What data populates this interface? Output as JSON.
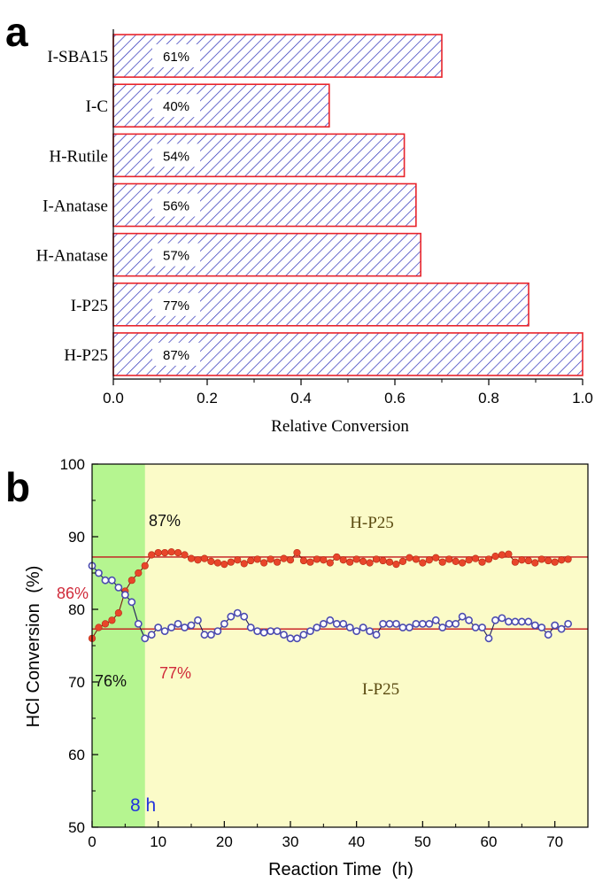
{
  "colors": {
    "bar_edge": "#e8242b",
    "hatch": "#2b2fb8",
    "orange": "#e8452a",
    "blue": "#4b4bb0",
    "ref_line": "#c4161c",
    "green_band": "#b5f590",
    "yellow_bg": "#fbfbc8"
  },
  "chart_data": [
    {
      "panel_label": "a",
      "type": "bar",
      "orientation": "horizontal",
      "categories": [
        "I-SBA15",
        "I-C",
        "H-Rutile",
        "I-Anatase",
        "H-Anatase",
        "I-P25",
        "H-P25"
      ],
      "values": [
        0.7,
        0.46,
        0.62,
        0.645,
        0.655,
        0.885,
        1.0
      ],
      "bar_labels": [
        "61%",
        "40%",
        "54%",
        "56%",
        "57%",
        "77%",
        "87%"
      ],
      "xlabel": "Relative Conversion",
      "xlim": [
        0,
        1.0
      ],
      "xticks": [
        "0.0",
        "0.2",
        "0.4",
        "0.6",
        "0.8",
        "1.0"
      ]
    },
    {
      "panel_label": "b",
      "type": "line",
      "xlabel": "Reaction Time",
      "xlabel_unit": "(h)",
      "ylabel": "HCl Conversion",
      "ylabel_unit": "(%)",
      "xlim": [
        0,
        75
      ],
      "ylim": [
        50,
        100
      ],
      "xticks": [
        "0",
        "10",
        "20",
        "30",
        "40",
        "50",
        "60",
        "70"
      ],
      "yticks": [
        "50",
        "60",
        "70",
        "80",
        "90",
        "100"
      ],
      "shaded_region_end": 8,
      "shaded_region_label": "8 h",
      "reference_lines": [
        87.2,
        77.3
      ],
      "series": [
        {
          "name": "H-P25",
          "color_key": "orange",
          "x": [
            0,
            1,
            2,
            3,
            4,
            5,
            6,
            7,
            8,
            9,
            10,
            11,
            12,
            13,
            14,
            15,
            16,
            17,
            18,
            19,
            20,
            21,
            22,
            23,
            24,
            25,
            26,
            27,
            28,
            29,
            30,
            31,
            32,
            33,
            34,
            35,
            36,
            37,
            38,
            39,
            40,
            41,
            42,
            43,
            44,
            45,
            46,
            47,
            48,
            49,
            50,
            51,
            52,
            53,
            54,
            55,
            56,
            57,
            58,
            59,
            60,
            61,
            62,
            63,
            64,
            65,
            66,
            67,
            68,
            69,
            70,
            71,
            72
          ],
          "y": [
            76,
            77.5,
            78,
            78.5,
            79.5,
            82.5,
            84,
            85,
            86,
            87.5,
            87.8,
            87.8,
            87.9,
            87.8,
            87.5,
            87,
            86.8,
            87.0,
            86.6,
            86.4,
            86.2,
            86.5,
            86.8,
            86.3,
            86.7,
            86.9,
            86.4,
            86.9,
            86.5,
            87.0,
            86.8,
            87.8,
            86.7,
            86.5,
            86.9,
            86.8,
            86.4,
            87.2,
            86.8,
            86.5,
            86.9,
            86.6,
            86.4,
            86.9,
            86.7,
            86.5,
            86.2,
            86.6,
            87.1,
            86.9,
            86.4,
            86.8,
            87.1,
            86.5,
            86.9,
            86.6,
            86.4,
            86.8,
            87.0,
            86.5,
            86.9,
            87.3,
            87.5,
            87.6,
            86.5,
            86.8,
            86.7,
            86.4,
            86.9,
            86.7,
            86.5,
            86.8,
            86.9
          ]
        },
        {
          "name": "I-P25",
          "color_key": "blue",
          "x": [
            0,
            1,
            2,
            3,
            4,
            5,
            6,
            7,
            8,
            9,
            10,
            11,
            12,
            13,
            14,
            15,
            16,
            17,
            18,
            19,
            20,
            21,
            22,
            23,
            24,
            25,
            26,
            27,
            28,
            29,
            30,
            31,
            32,
            33,
            34,
            35,
            36,
            37,
            38,
            39,
            40,
            41,
            42,
            43,
            44,
            45,
            46,
            47,
            48,
            49,
            50,
            51,
            52,
            53,
            54,
            55,
            56,
            57,
            58,
            59,
            60,
            61,
            62,
            63,
            64,
            65,
            66,
            67,
            68,
            69,
            70,
            71,
            72
          ],
          "y": [
            86,
            85,
            84,
            84,
            83,
            82,
            81,
            78,
            76,
            76.5,
            77.5,
            77,
            77.5,
            78,
            77.5,
            77.8,
            78.5,
            76.5,
            76.5,
            77,
            78,
            79,
            79.5,
            79,
            77.5,
            77,
            76.8,
            77,
            77,
            76.5,
            76,
            76,
            76.5,
            77,
            77.5,
            78,
            78.5,
            78,
            78,
            77.5,
            77,
            77.5,
            77,
            76.5,
            78,
            78,
            78,
            77.5,
            77.5,
            78,
            78,
            78,
            78.5,
            77.5,
            78,
            78,
            79,
            78.5,
            77.5,
            77.5,
            76,
            78.5,
            78.8,
            78.3,
            78.3,
            78.3,
            78.3,
            77.8,
            77.5,
            76.5,
            77.8,
            77.3,
            78
          ]
        }
      ],
      "annotations": [
        {
          "text": "H-P25"
        },
        {
          "text": "I-P25"
        },
        {
          "text": "87%"
        },
        {
          "text": "86%"
        },
        {
          "text": "76%"
        },
        {
          "text": "77%"
        }
      ]
    }
  ]
}
